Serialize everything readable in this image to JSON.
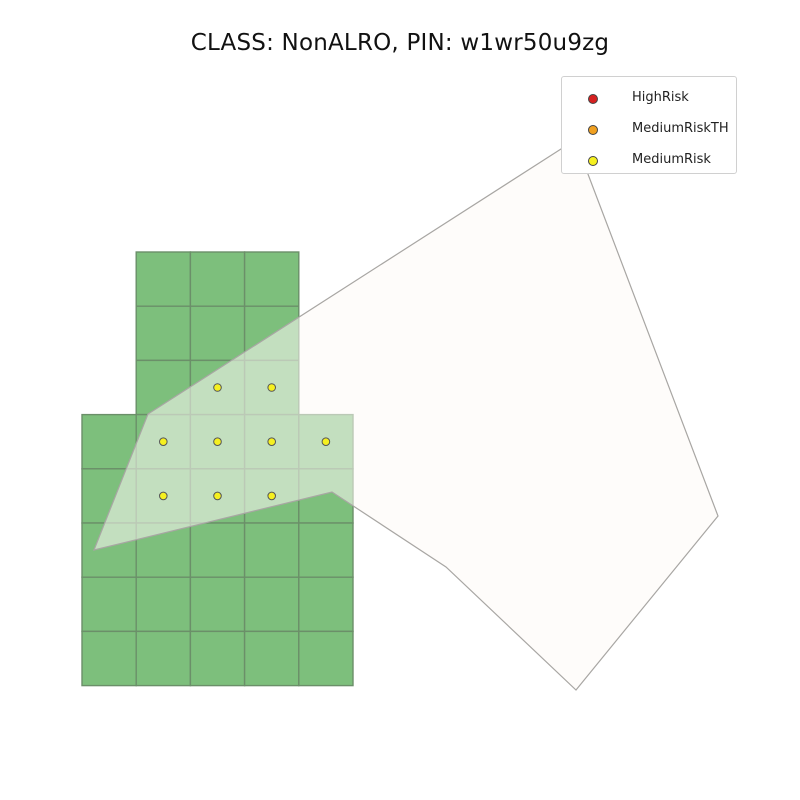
{
  "title": "CLASS: NonALRO, PIN: w1wr50u9zg",
  "colors": {
    "grid_fill": "#7dbf7c",
    "grid_fill_overlap": "#a0cc9a",
    "grid_line": "#6b8f69",
    "parcel_fill": "#fdf9f6",
    "parcel_stroke": "#a8a6a3",
    "high_risk": "#d62020",
    "medium_risk_th": "#f0a020",
    "medium_risk": "#f5f020"
  },
  "legend": {
    "items": [
      {
        "label": "HighRisk",
        "color": "#d62020"
      },
      {
        "label": "MediumRiskTH",
        "color": "#f0a020"
      },
      {
        "label": "MediumRisk",
        "color": "#f5f020"
      }
    ]
  },
  "map": {
    "grid_cells": [
      {
        "row": 0,
        "col": 1
      },
      {
        "row": 0,
        "col": 2
      },
      {
        "row": 0,
        "col": 3
      },
      {
        "row": 1,
        "col": 1
      },
      {
        "row": 1,
        "col": 2
      },
      {
        "row": 1,
        "col": 3
      },
      {
        "row": 2,
        "col": 1
      },
      {
        "row": 2,
        "col": 2
      },
      {
        "row": 2,
        "col": 3
      },
      {
        "row": 3,
        "col": 0
      },
      {
        "row": 3,
        "col": 1
      },
      {
        "row": 3,
        "col": 2
      },
      {
        "row": 3,
        "col": 3
      },
      {
        "row": 3,
        "col": 4
      },
      {
        "row": 4,
        "col": 0
      },
      {
        "row": 4,
        "col": 1
      },
      {
        "row": 4,
        "col": 2
      },
      {
        "row": 4,
        "col": 3
      },
      {
        "row": 4,
        "col": 4
      },
      {
        "row": 5,
        "col": 0
      },
      {
        "row": 5,
        "col": 1
      },
      {
        "row": 5,
        "col": 2
      },
      {
        "row": 5,
        "col": 3
      },
      {
        "row": 5,
        "col": 4
      },
      {
        "row": 6,
        "col": 0
      },
      {
        "row": 6,
        "col": 1
      },
      {
        "row": 6,
        "col": 2
      },
      {
        "row": 6,
        "col": 3
      },
      {
        "row": 6,
        "col": 4
      },
      {
        "row": 7,
        "col": 0
      },
      {
        "row": 7,
        "col": 1
      },
      {
        "row": 7,
        "col": 2
      },
      {
        "row": 7,
        "col": 3
      },
      {
        "row": 7,
        "col": 4
      }
    ],
    "risk_points": [
      {
        "row": 2,
        "col": 2,
        "risk": "MediumRisk"
      },
      {
        "row": 2,
        "col": 3,
        "risk": "MediumRisk"
      },
      {
        "row": 3,
        "col": 1,
        "risk": "MediumRisk"
      },
      {
        "row": 3,
        "col": 2,
        "risk": "MediumRisk"
      },
      {
        "row": 3,
        "col": 3,
        "risk": "MediumRisk"
      },
      {
        "row": 3,
        "col": 4,
        "risk": "MediumRisk"
      },
      {
        "row": 4,
        "col": 1,
        "risk": "MediumRisk"
      },
      {
        "row": 4,
        "col": 2,
        "risk": "MediumRisk"
      },
      {
        "row": 4,
        "col": 3,
        "risk": "MediumRisk"
      }
    ]
  }
}
